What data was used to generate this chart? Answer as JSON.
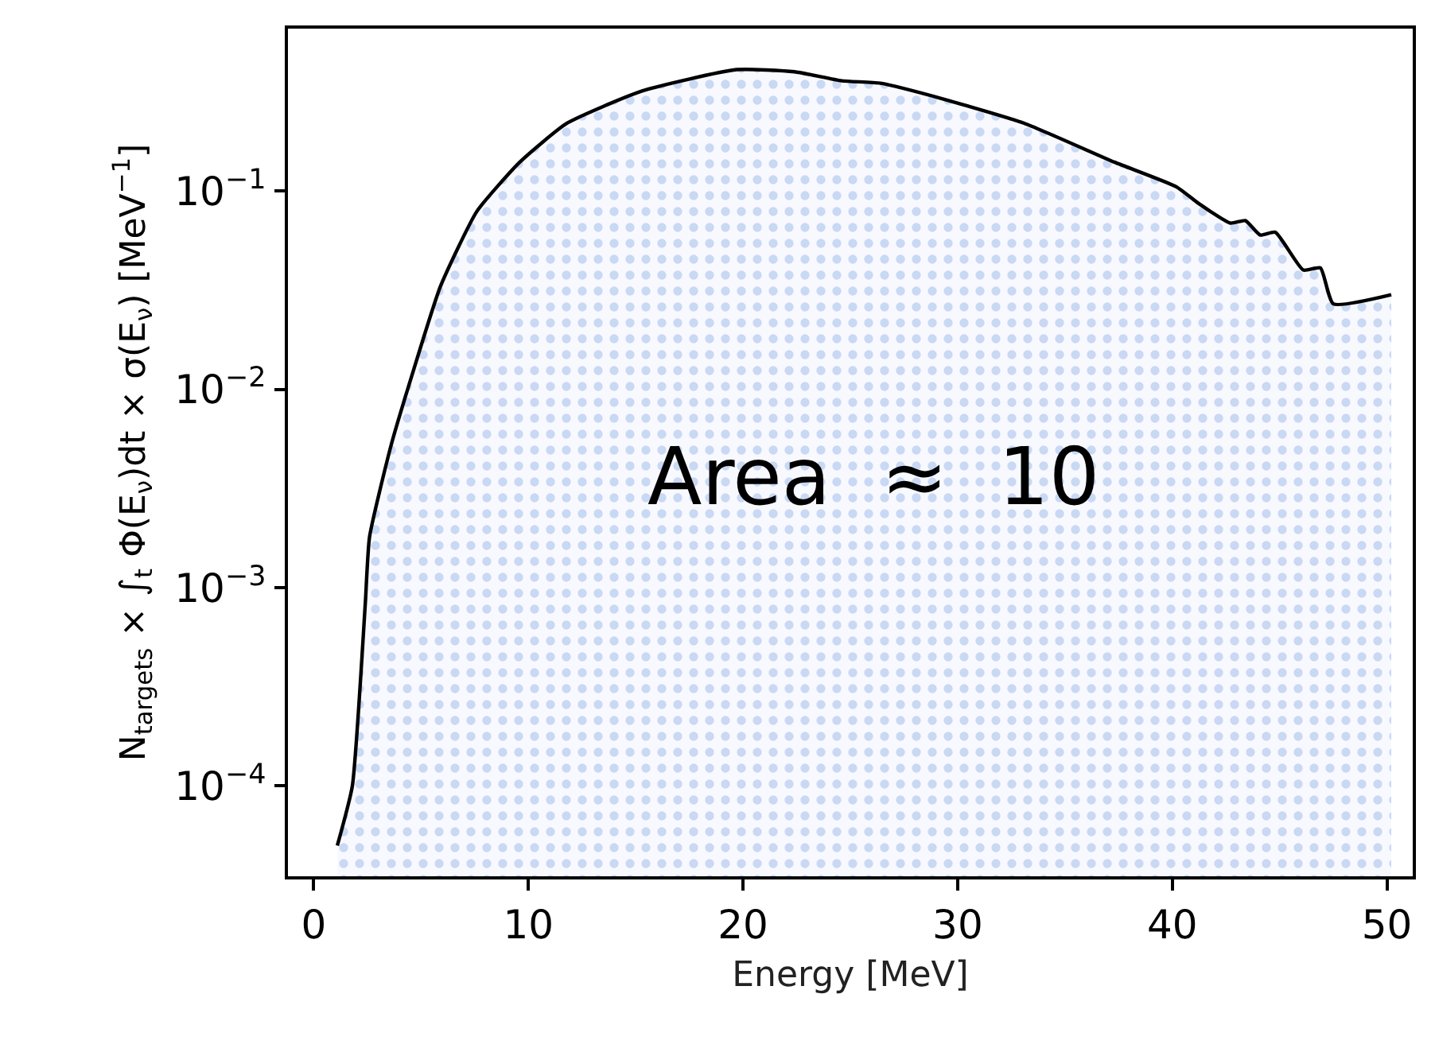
{
  "chart_data": {
    "type": "area",
    "xlabel": "Energy [MeV]",
    "ylabel": "N$_{targets}$ × ∫$_{t}$ Φ(E$_{ν}$)dt × σ(E$_{ν}$) [MeV$^{−1}$]",
    "annotations": [
      "Area  ≈  10"
    ],
    "x": [
      1.1,
      1.8,
      2.4,
      2.6,
      3.6,
      4.6,
      5.9,
      7.6,
      9.6,
      11.8,
      15.3,
      19.7,
      22.4,
      24.6,
      26.4,
      29.4,
      33.1,
      37.3,
      40.2,
      41.2,
      42.7,
      43.4,
      44.1,
      44.8,
      46.1,
      46.9,
      47.5,
      50.2
    ],
    "series": [
      {
        "color": "#000000",
        "values": [
          5e-05,
          0.0001,
          0.00082,
          0.0018,
          0.0052,
          0.012,
          0.033,
          0.079,
          0.14,
          0.22,
          0.32,
          0.41,
          0.4,
          0.36,
          0.35,
          0.29,
          0.22,
          0.14,
          0.105,
          0.087,
          0.069,
          0.071,
          0.06,
          0.062,
          0.04,
          0.041,
          0.027,
          0.03
        ]
      }
    ],
    "xlim": [
      -1.2,
      51.2
    ],
    "xticks": [
      0,
      10,
      20,
      30,
      40,
      50
    ],
    "ylim": [
      3.5e-05,
      0.66
    ],
    "yticks": [
      {
        "value": 0.0001,
        "label": "10$^{−4}$"
      },
      {
        "value": 0.001,
        "label": "10$^{−3}$"
      },
      {
        "value": 0.01,
        "label": "10$^{−2}$"
      },
      {
        "value": 0.1,
        "label": "10$^{−1}$"
      }
    ],
    "log": "y"
  }
}
